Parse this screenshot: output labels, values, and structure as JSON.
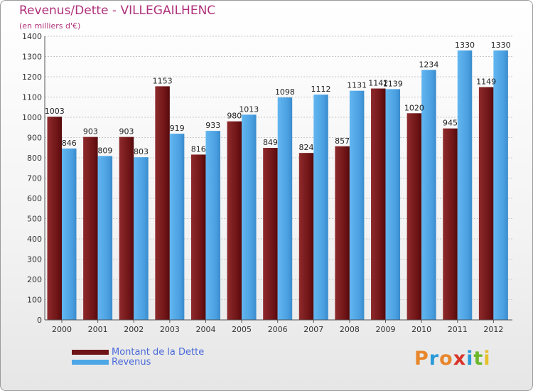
{
  "chart_data": {
    "type": "bar",
    "title": "Revenus/Dette - VILLEGAILHENC",
    "subtitle": "(en milliers d'€)",
    "categories": [
      "2000",
      "2001",
      "2002",
      "2003",
      "2004",
      "2005",
      "2006",
      "2007",
      "2008",
      "2009",
      "2010",
      "2011",
      "2012"
    ],
    "series": [
      {
        "name": "Montant de la Dette",
        "color": "#7a1c1e",
        "values": [
          1003,
          903,
          903,
          1153,
          816,
          980,
          849,
          824,
          857,
          1142,
          1020,
          945,
          1149
        ]
      },
      {
        "name": "Revenus",
        "color": "#4ea6e6",
        "values": [
          846,
          809,
          803,
          919,
          933,
          1013,
          1098,
          1112,
          1131,
          1139,
          1234,
          1330,
          1330
        ]
      }
    ],
    "ylim": [
      0,
      1400
    ],
    "yticks": [
      0,
      100,
      200,
      300,
      400,
      500,
      600,
      700,
      800,
      900,
      1000,
      1100,
      1200,
      1300,
      1400
    ],
    "grid": true,
    "legend_position": "bottom-left"
  },
  "logo": {
    "letters": [
      {
        "ch": "P",
        "color": "#e8862a"
      },
      {
        "ch": "r",
        "color": "#2a9ad8"
      },
      {
        "ch": "o",
        "color": "#e8862a"
      },
      {
        "ch": "x",
        "color": "#d8342a"
      },
      {
        "ch": "i",
        "color": "#2a9ad8"
      },
      {
        "ch": "t",
        "color": "#6cb82a"
      },
      {
        "ch": "i",
        "color": "#e8c02a"
      }
    ]
  }
}
